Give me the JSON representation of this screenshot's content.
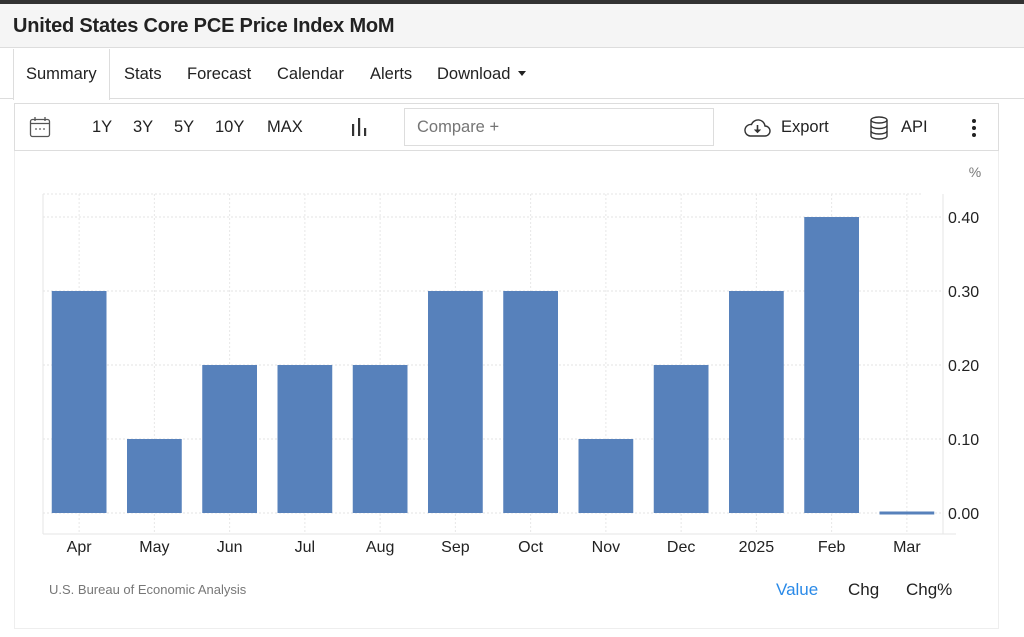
{
  "header": {
    "title": "United States Core PCE Price Index MoM"
  },
  "tabs": [
    {
      "label": "Summary",
      "active": true
    },
    {
      "label": "Stats"
    },
    {
      "label": "Forecast"
    },
    {
      "label": "Calendar"
    },
    {
      "label": "Alerts"
    },
    {
      "label": "Download",
      "dropdown": true
    }
  ],
  "toolbar": {
    "calendar_icon": "calendar-icon",
    "ranges": [
      "1Y",
      "3Y",
      "5Y",
      "10Y",
      "MAX"
    ],
    "chart_type_icon": "bar-chart-icon",
    "compare_placeholder": "Compare +",
    "export_label": "Export",
    "export_icon": "cloud-download-icon",
    "api_label": "API",
    "api_icon": "database-icon",
    "more_icon": "vertical-ellipsis-icon"
  },
  "footer": {
    "source": "U.S. Bureau of Economic Analysis",
    "modes": [
      {
        "label": "Value",
        "active": true
      },
      {
        "label": "Chg"
      },
      {
        "label": "Chg%"
      }
    ],
    "active_color": "#2a8ae8"
  },
  "chart_data": {
    "type": "bar",
    "title": "United States Core PCE Price Index MoM",
    "xlabel": "",
    "ylabel": "%",
    "categories": [
      "Apr",
      "May",
      "Jun",
      "Jul",
      "Aug",
      "Sep",
      "Oct",
      "Nov",
      "Dec",
      "2025",
      "Feb",
      "Mar"
    ],
    "values": [
      0.3,
      0.1,
      0.2,
      0.2,
      0.2,
      0.3,
      0.3,
      0.1,
      0.2,
      0.3,
      0.4,
      0.0
    ],
    "yticks": [
      "0.00",
      "0.10",
      "0.20",
      "0.30",
      "0.40"
    ],
    "ylim": [
      0,
      0.43
    ],
    "bar_color": "#5781bb",
    "grid": true,
    "y_axis_side": "right",
    "legend": "none"
  }
}
